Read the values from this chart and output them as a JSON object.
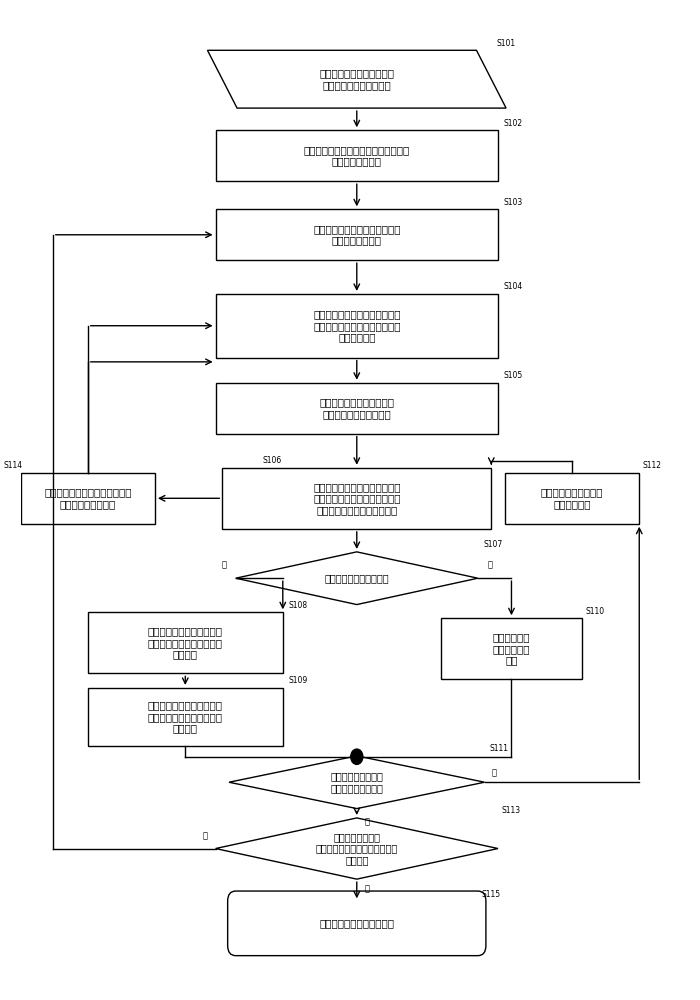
{
  "bg_color": "#ffffff",
  "line_color": "#000000",
  "box_fill": "#ffffff",
  "text_color": "#000000",
  "font_size": 7.5,
  "s101_label": "输入频率核查及之后优化所\n需的各项数据和运算参数",
  "s102_label": "计算小区间层次、相对位置、方位角对\n打情况、邻区情况",
  "s103_label": "建立干扰核查模型，对全网小区\n干扰性能进行核查",
  "s104_label": "将干扰等级高于小区优化等级的\n小区按照干扰性能排序后放入待\n优化小区集合",
  "s105_label": "将待优化集合内小区依次作\n为当前小区进行核查优化",
  "s106_label": "评估当前小区所有频点的干扰性\n能，将干扰等级高于频点优化等\n级的频点放入待优化频点集合",
  "s107_label": "待优化频点集合是否为空",
  "s108_label": "评估所有可用频点在当前小\n区的干扰性能，并按照性能\n优劣排列",
  "s109_label": "从可用频点中选出最优频点\n组合对待优化集合中的频点\n进行优化",
  "s110_label": "将当前小区从\n待优化集合中\n去除",
  "s111_label": "是否已对待优化集合\n内所有小区进行运算",
  "s112_label": "取优化集合内下一小区\n作为当前小区",
  "s113_label": "是否优化集合为空\n或达到最大运算次数或两次运算\n结果相同",
  "s114_label": "对被优化小区和优化中可能受影\n响小区进行重新评估",
  "s115_label": "根据优化结果输出相应信息",
  "yes_label": "是",
  "no_label": "否"
}
